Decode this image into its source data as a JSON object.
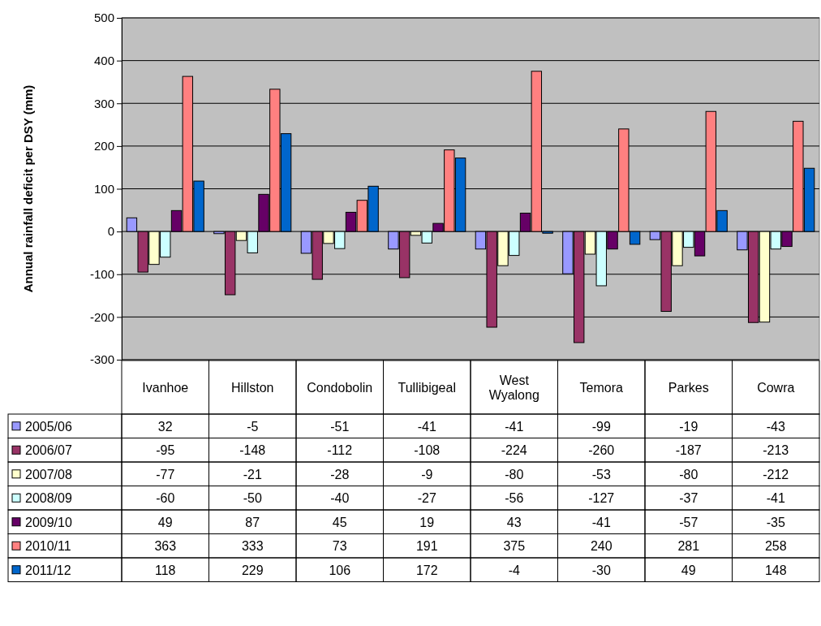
{
  "chart_data": {
    "type": "bar",
    "ylabel": "Annual rainfall deficit per DSY (mm)",
    "categories": [
      "Ivanhoe",
      "Hillston",
      "Condobolin",
      "Tullibigeal",
      "West Wyalong",
      "Temora",
      "Parkes",
      "Cowra"
    ],
    "series": [
      {
        "name": "2005/06",
        "color": "#9999ff",
        "values": [
          32,
          -5,
          -51,
          -41,
          -41,
          -99,
          -19,
          -43
        ]
      },
      {
        "name": "2006/07",
        "color": "#993366",
        "values": [
          -95,
          -148,
          -112,
          -108,
          -224,
          -260,
          -187,
          -213
        ]
      },
      {
        "name": "2007/08",
        "color": "#ffffcc",
        "values": [
          -77,
          -21,
          -28,
          -9,
          -80,
          -53,
          -80,
          -212
        ]
      },
      {
        "name": "2008/09",
        "color": "#ccffff",
        "values": [
          -60,
          -50,
          -40,
          -27,
          -56,
          -127,
          -37,
          -41
        ]
      },
      {
        "name": "2009/10",
        "color": "#660066",
        "values": [
          49,
          87,
          45,
          19,
          43,
          -41,
          -57,
          -35
        ]
      },
      {
        "name": "2010/11",
        "color": "#ff8080",
        "values": [
          363,
          333,
          73,
          191,
          375,
          240,
          281,
          258
        ]
      },
      {
        "name": "2011/12",
        "color": "#0066cc",
        "values": [
          118,
          229,
          106,
          172,
          -4,
          -30,
          49,
          148
        ]
      }
    ],
    "ylim": [
      -300,
      500
    ],
    "yticks": [
      -300,
      -200,
      -100,
      0,
      100,
      200,
      300,
      400,
      500
    ],
    "grid": "y",
    "legend": "bottom left",
    "data_labels": true
  }
}
